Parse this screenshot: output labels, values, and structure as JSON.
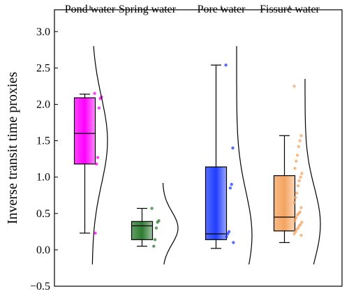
{
  "chart_data": {
    "type": "box",
    "ylabel": "Inverse transit time proxies",
    "xlabel": "",
    "title": "",
    "ylim": [
      -0.5,
      3.3
    ],
    "yticks": [
      -0.5,
      0.0,
      0.5,
      1.0,
      1.5,
      2.0,
      2.5,
      3.0
    ],
    "ytick_labels": [
      "−0.5",
      "0.0",
      "0.5",
      "1.0",
      "1.5",
      "2.0",
      "2.5",
      "3.0"
    ],
    "categories": [
      "Pond water",
      "Spring water",
      "Pore water",
      "Fissure water"
    ],
    "series": [
      {
        "category": "Pond water",
        "color": "#ff00ff",
        "whisker_low": 0.23,
        "q1": 1.18,
        "median": 1.6,
        "q3": 2.09,
        "whisker_high": 2.14,
        "points": [
          2.15,
          2.1,
          2.08,
          1.95,
          1.27,
          1.18,
          0.23
        ],
        "density_range": [
          -0.2,
          2.8
        ],
        "density_peak": 1.5
      },
      {
        "category": "Spring water",
        "color": "#2e7d32",
        "whisker_low": 0.05,
        "q1": 0.14,
        "median": 0.33,
        "q3": 0.39,
        "whisker_high": 0.57,
        "points": [
          0.57,
          0.4,
          0.38,
          0.3,
          0.14,
          0.05
        ],
        "density_range": [
          -0.2,
          0.92
        ],
        "density_peak": 0.3
      },
      {
        "category": "Pore water",
        "color": "#1f3dff",
        "whisker_low": 0.02,
        "q1": 0.14,
        "median": 0.22,
        "q3": 1.14,
        "whisker_high": 2.54,
        "points": [
          2.54,
          1.4,
          0.9,
          0.85,
          0.25,
          0.22,
          0.18,
          0.1
        ],
        "density_range": [
          -0.2,
          2.8
        ],
        "density_peak": 0.2
      },
      {
        "category": "Fissure water",
        "color": "#f4a460",
        "whisker_low": 0.1,
        "q1": 0.26,
        "median": 0.45,
        "q3": 1.02,
        "whisker_high": 1.57,
        "points": [
          2.25,
          1.57,
          1.5,
          1.42,
          1.3,
          1.22,
          1.12,
          1.05,
          1.0,
          0.95,
          0.88,
          0.78,
          0.72,
          0.65,
          0.58,
          0.52,
          0.5,
          0.48,
          0.44,
          0.4,
          0.38,
          0.35,
          0.33,
          0.3,
          0.28,
          0.25,
          0.22,
          0.2
        ],
        "density_range": [
          -0.2,
          2.35
        ],
        "density_peak": 0.35
      }
    ],
    "grid": false,
    "legend": "none"
  }
}
